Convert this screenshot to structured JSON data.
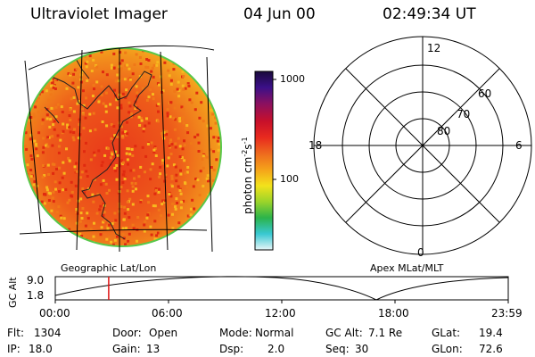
{
  "header": {
    "title": "Ultraviolet Imager",
    "date": "04 Jun 00",
    "time": "02:49:34 UT"
  },
  "image_panel": {
    "label": "Geographic Lat/Lon",
    "colors": {
      "low": "#e02a10",
      "mid": "#f07818",
      "high": "#f7b81e",
      "limb": "#36c23a"
    }
  },
  "colorbar": {
    "label": "photon cm",
    "label_exp1": "-2",
    "label_mid": "s",
    "label_exp2": "-1",
    "ticks": [
      "1000",
      "100"
    ],
    "stops": [
      "#e8f6f8",
      "#38c8d2",
      "#2bb34a",
      "#9bd42a",
      "#f3e21b",
      "#f5a21a",
      "#ee6a1e",
      "#e82a1e",
      "#c8102a",
      "#8a1060",
      "#3b1088",
      "#1a0a3c"
    ]
  },
  "polar_panel": {
    "label": "Apex MLat/MLT",
    "mlt_labels": {
      "top": "12",
      "right": "6",
      "bottom": "0",
      "left": "18"
    },
    "lat_labels": [
      "60",
      "70",
      "80"
    ]
  },
  "altitude_plot": {
    "ylabel": "GC Alt",
    "yticks": [
      "9.0",
      "1.8"
    ],
    "xticks": [
      "00:00",
      "06:00",
      "12:00",
      "18:00",
      "23:59"
    ],
    "marker_time": "02:49:34"
  },
  "info": {
    "flt": {
      "label": "Flt:",
      "value": "1304"
    },
    "ip": {
      "label": "IP:",
      "value": "18.0"
    },
    "door": {
      "label": "Door:",
      "value": "Open"
    },
    "gain": {
      "label": "Gain:",
      "value": "13"
    },
    "mode": {
      "label": "Mode:",
      "value": "Normal"
    },
    "dsp": {
      "label": "Dsp:",
      "value": "2.0"
    },
    "gcalt": {
      "label": "GC Alt:",
      "value": "7.1 Re"
    },
    "seq": {
      "label": "Seq:",
      "value": "30"
    },
    "glat": {
      "label": "GLat:",
      "value": "19.4"
    },
    "glon": {
      "label": "GLon:",
      "value": "72.6"
    }
  }
}
